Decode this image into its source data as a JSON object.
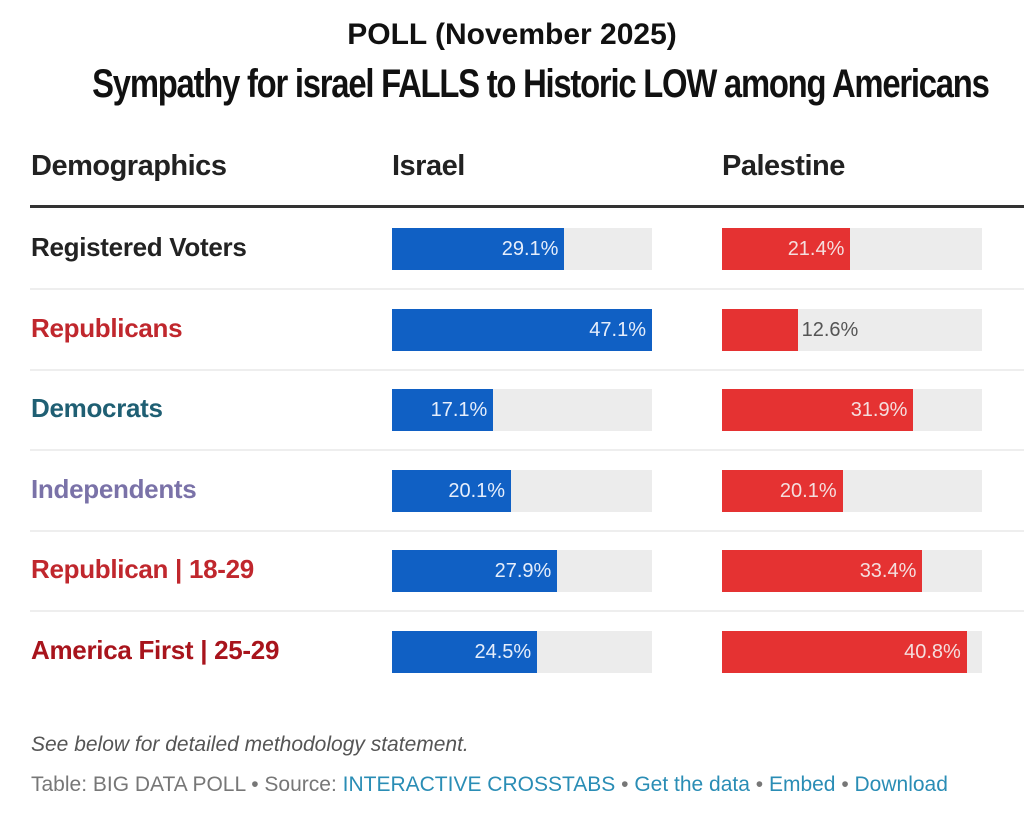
{
  "header": {
    "poll_date": "POLL (November 2025)",
    "headline": "Sympathy for israel FALLS to Historic LOW among Americans"
  },
  "colors": {
    "israel": "#1060c4",
    "palestine": "#e53232",
    "track": "#ececec"
  },
  "chart_data": {
    "type": "table",
    "title": "Sympathy for israel FALLS to Historic LOW among Americans",
    "subtitle": "POLL (November 2025)",
    "columns": [
      "Demographics",
      "Israel",
      "Palestine"
    ],
    "unit": "%",
    "value_range": [
      0,
      40.8
    ],
    "rows": [
      {
        "label": "Registered Voters",
        "label_color": "#222222",
        "israel": 29.1,
        "palestine": 21.4
      },
      {
        "label": "Republicans",
        "label_color": "#c0272d",
        "israel": 47.1,
        "palestine": 12.6
      },
      {
        "label": "Democrats",
        "label_color": "#1f5f73",
        "israel": 17.1,
        "palestine": 31.9
      },
      {
        "label": "Independents",
        "label_color": "#7a72a8",
        "israel": 20.1,
        "palestine": 20.1
      },
      {
        "label": "Republican | 18-29",
        "label_color": "#c0272d",
        "israel": 27.9,
        "palestine": 33.4
      },
      {
        "label": "America First | 25-29",
        "label_color": "#a8141c",
        "israel": 24.5,
        "palestine": 40.8
      }
    ]
  },
  "footer": {
    "note": "See below for detailed methodology statement.",
    "table_label": "Table: BIG DATA POLL",
    "source_label": "Source: ",
    "source_link": "INTERACTIVE CROSSTABS",
    "get_data": "Get the data",
    "embed": "Embed",
    "download": "Download",
    "separator": " • "
  }
}
